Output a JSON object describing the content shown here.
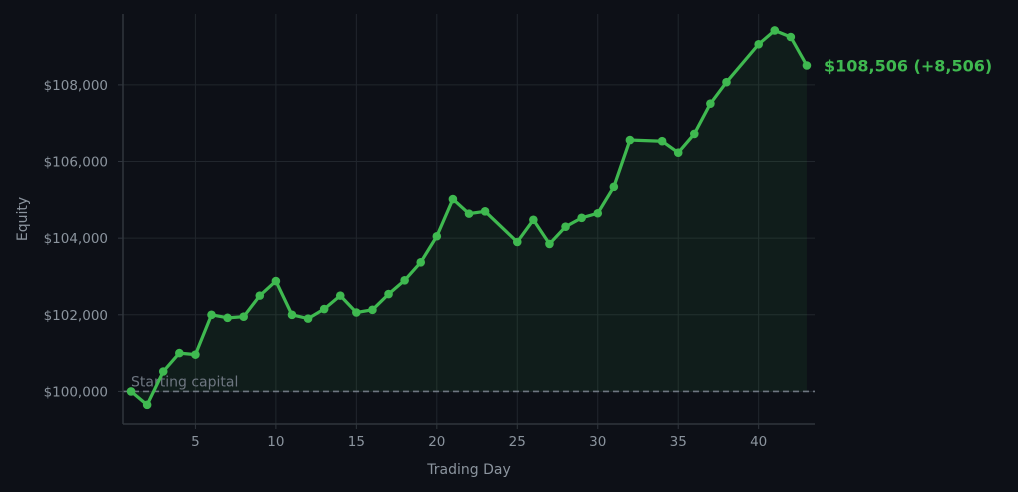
{
  "chart_data": {
    "type": "line",
    "title": "",
    "xlabel": "Trading Day",
    "ylabel": "Equity",
    "xlim": [
      0.5,
      43.5
    ],
    "ylim": [
      99150,
      109850
    ],
    "x_ticks": [
      5,
      10,
      15,
      20,
      25,
      30,
      35,
      40
    ],
    "y_ticks": [
      100000,
      102000,
      104000,
      106000,
      108000
    ],
    "y_tick_labels": [
      "$100,000",
      "$102,000",
      "$104,000",
      "$106,000",
      "$108,000"
    ],
    "grid": true,
    "reference_line": {
      "y": 100000,
      "label": "Starting capital",
      "style": "dashed"
    },
    "end_annotation": "$108,506  (+8,506)",
    "series": [
      {
        "color": "#3fb950",
        "fill_color": "#3fb950",
        "x": [
          1,
          2,
          3,
          4,
          5,
          6,
          7,
          8,
          9,
          10,
          11,
          12,
          13,
          14,
          15,
          16,
          17,
          18,
          19,
          20,
          21,
          22,
          23,
          25,
          26,
          27,
          28,
          29,
          30,
          31,
          32,
          34,
          35,
          36,
          37,
          38,
          40,
          41,
          42,
          43
        ],
        "y": [
          100000,
          99650,
          100520,
          101000,
          100960,
          102000,
          101920,
          101950,
          102500,
          102880,
          102000,
          101900,
          102150,
          102500,
          102060,
          102130,
          102540,
          102900,
          103370,
          104050,
          105020,
          104640,
          104700,
          103900,
          104480,
          103850,
          104300,
          104530,
          104650,
          105340,
          106560,
          106530,
          106230,
          106720,
          107510,
          108070,
          109060,
          109420,
          109250,
          108506
        ]
      }
    ]
  },
  "colors": {
    "background": "#0d1017",
    "grid": "#21262d",
    "axis": "#30363d",
    "reference": "#6e7681",
    "line": "#3fb950"
  }
}
